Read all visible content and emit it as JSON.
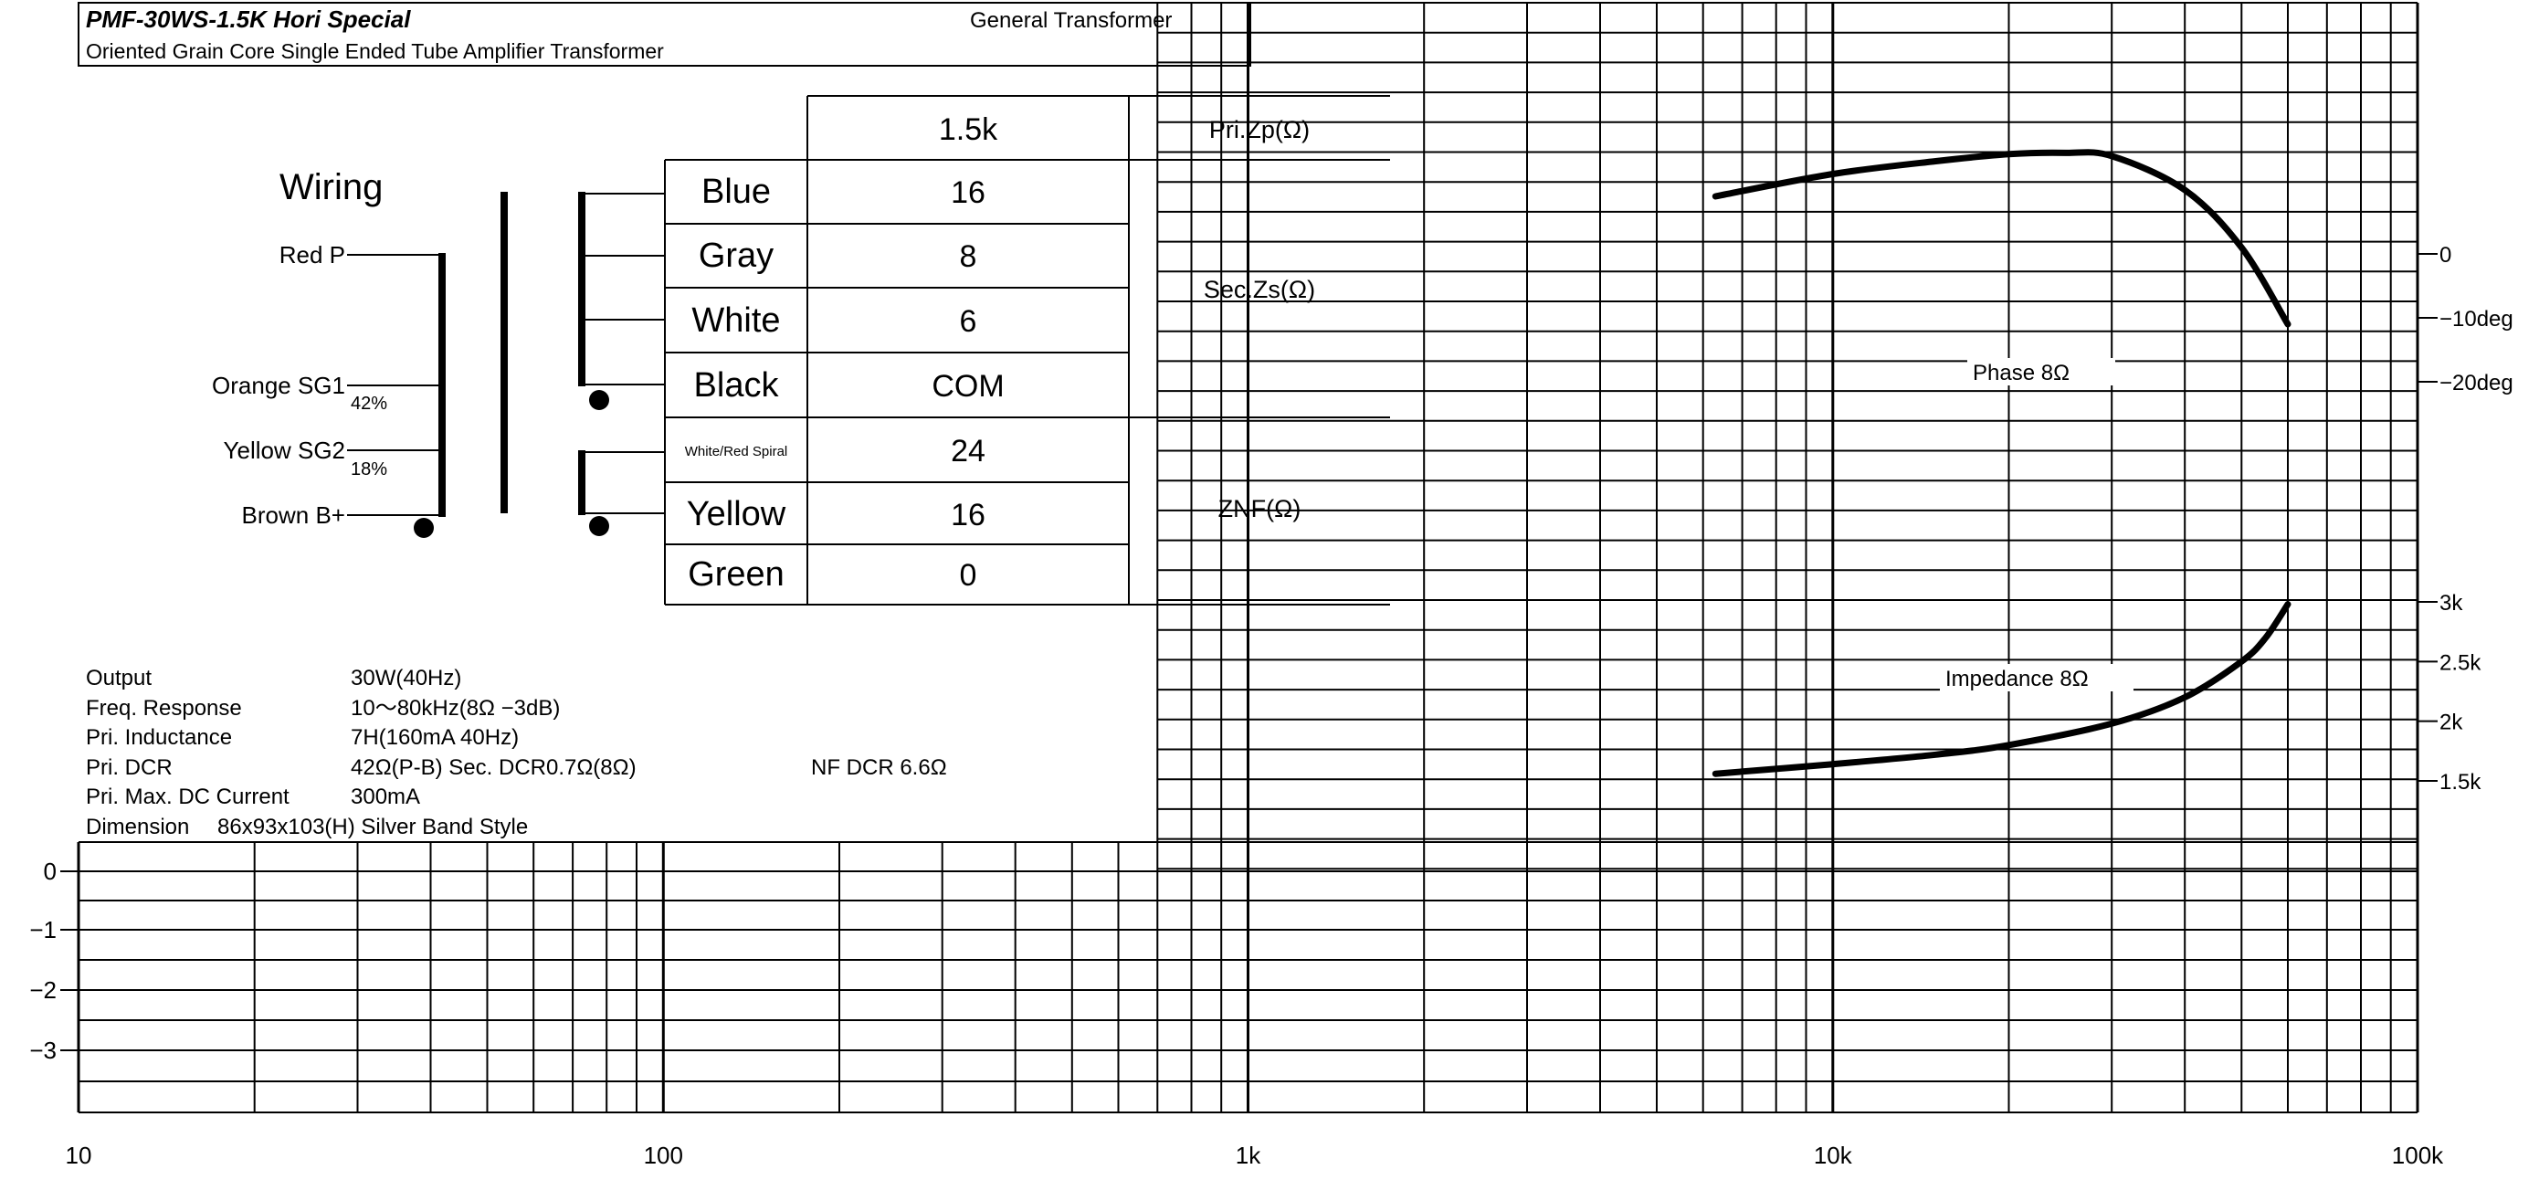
{
  "header": {
    "model": "PMF-30WS-1.5K  Hori Special",
    "category": "General Transformer",
    "description": "Oriented Grain Core Single Ended Tube Amplifier Transformer"
  },
  "wiring": {
    "title": "Wiring",
    "primary_leads": [
      {
        "label": "Red  P"
      },
      {
        "label": "Orange  SG1",
        "tap": "42%"
      },
      {
        "label": "Yellow  SG2",
        "tap": "18%"
      },
      {
        "label": "Brown  B+"
      }
    ]
  },
  "terminals": {
    "primary": {
      "value": "1.5k",
      "group": "Pri.Zp(Ω)"
    },
    "secondary_group": "Sec.Zs(Ω)",
    "secondary": [
      {
        "color": "Blue",
        "value": "16"
      },
      {
        "color": "Gray",
        "value": "8"
      },
      {
        "color": "White",
        "value": "6"
      },
      {
        "color": "Black",
        "value": "COM"
      }
    ],
    "nf_group": "ZNF(Ω)",
    "nf": [
      {
        "color": "White/Red Spiral",
        "value": "24"
      },
      {
        "color": "Yellow",
        "value": "16"
      },
      {
        "color": "Green",
        "value": "0"
      }
    ]
  },
  "specs": [
    {
      "label": "Output",
      "value": "30W(40Hz)"
    },
    {
      "label": "Freq. Response",
      "value": "10〜80kHz(8Ω  −3dB)"
    },
    {
      "label": "Pri. Inductance",
      "value": "7H(160mA  40Hz)"
    },
    {
      "label": "Pri. DCR",
      "value": "42Ω(P-B)    Sec. DCR0.7Ω(8Ω)",
      "extra": "NF DCR 6.6Ω"
    },
    {
      "label": "Pri. Max. DC Current",
      "value": "300mA"
    },
    {
      "label": "Dimension",
      "value": "86x93x103(H)  Silver Band Style"
    }
  ],
  "chart_data": {
    "type": "line",
    "x_scale": "log",
    "xlim": [
      10,
      100000
    ],
    "x_ticks": [
      10,
      100,
      1000,
      10000,
      100000
    ],
    "x_tick_labels": [
      "10",
      "100",
      "1k",
      "10k",
      "100k"
    ],
    "grid": true,
    "response_axis": {
      "tick_values": [
        0,
        -1,
        -2,
        -3
      ],
      "tick_labels": [
        "0",
        "−1",
        "−2",
        "−3"
      ]
    },
    "phase_axis": {
      "tick_values": [
        0,
        -10,
        -20
      ],
      "tick_labels": [
        "0",
        "−10deg",
        "−20deg"
      ]
    },
    "impedance_axis": {
      "tick_values": [
        3000,
        2500,
        2000,
        1500
      ],
      "tick_labels": [
        "3k",
        "2.5k",
        "2k",
        "1.5k"
      ]
    },
    "series": [
      {
        "name": "Phase  8Ω",
        "axis": "phase",
        "x": [
          6300,
          10000,
          15000,
          20000,
          25000,
          30000,
          40000,
          50000,
          60000
        ],
        "y": [
          9,
          12.5,
          14.5,
          15.6,
          15.8,
          15.3,
          10,
          1,
          -11
        ]
      },
      {
        "name": "Impedance  8Ω",
        "axis": "impedance",
        "x": [
          6300,
          10000,
          15000,
          20000,
          30000,
          40000,
          50000,
          55000,
          60000
        ],
        "y": [
          1560,
          1640,
          1720,
          1800,
          1980,
          2200,
          2500,
          2700,
          2980
        ]
      }
    ]
  }
}
